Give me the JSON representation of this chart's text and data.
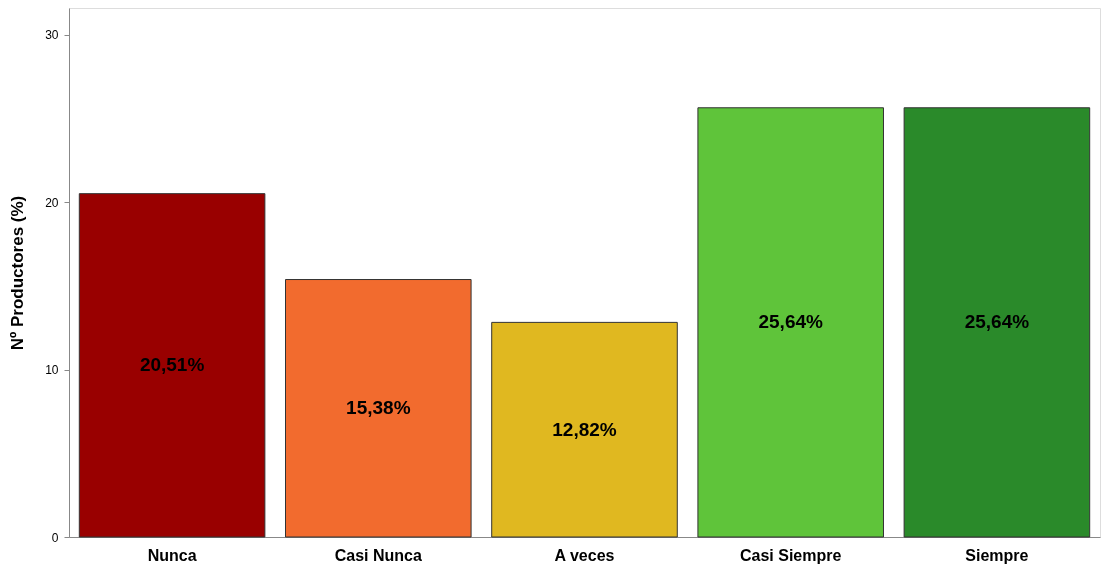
{
  "chart_data": {
    "type": "bar",
    "ylabel": "Nº Productores (%)",
    "categories": [
      "Nunca",
      "Casi Nunca",
      "A veces",
      "Casi Siempre",
      "Siempre"
    ],
    "values": [
      20.51,
      15.38,
      12.82,
      25.64,
      25.64
    ],
    "colors": [
      "#990000",
      "#f26b2e",
      "#e0b820",
      "#5fc43a",
      "#2a8a2a"
    ],
    "value_labels": [
      "20,51%",
      "15,38%",
      "12,82%",
      "25,64%",
      "25,64%"
    ],
    "ylim": [
      0,
      31.6
    ],
    "yticks": [
      0,
      10,
      20,
      30
    ],
    "grid": false,
    "legend": false
  }
}
